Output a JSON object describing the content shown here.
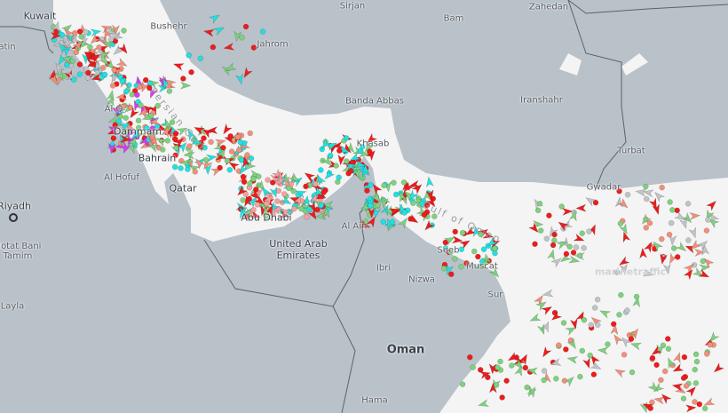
{
  "map": {
    "colors": {
      "land": "#b9c1c9",
      "water": "#f4f4f4",
      "border": "#5c6269"
    },
    "labels": {
      "kuwait": "Kuwait",
      "al_batin": "atin",
      "bushehr": "Bushehr",
      "jahrom": "Jahrom",
      "sirjan": "Sirjan",
      "bam": "Bam",
      "zahedan": "Zahedan",
      "bandar_abbas": "Banda Abbas",
      "iranshahr": "Iranshahr",
      "turbat": "Turbat",
      "gwadar": "Gwadar",
      "khasab": "Khasab",
      "al_qatif": "Al Q",
      "dammam": "Dammam",
      "bahrain": "Bahrain",
      "al_hofuf": "Al Hofuf",
      "qatar": "Qatar",
      "riyadh": "Riyadh",
      "hotat_bani_tamim": "Hotat Bani Tamim",
      "layla": "Layla",
      "abu_dhabi": "Abu Dhabi",
      "uae": "United Arab Emirates",
      "al_ain": "Al Ain",
      "ibri": "Ibri",
      "nizwa": "Nizwa",
      "seeb": "Seeb",
      "muscat": "Muscat",
      "sur": "Sur",
      "oman": "Oman",
      "haima": "Hama",
      "persian_gulf": "Persian Gulf",
      "gulf_of_oman": "Gulf of Oman",
      "watermark": "marinetraffic"
    },
    "vessel_colors": {
      "cargo": "#7ed17e",
      "tanker": "#ee1c1c",
      "passenger": "#22e0e0",
      "tug_special": "#17e8e8",
      "fishing": "#f0907a",
      "pleasure": "#d43cf0",
      "high_speed": "#f5b400",
      "unknown": "#c0c4c8",
      "navigation_aid": "#f5a0a0",
      "other": "#3b6ef0"
    }
  }
}
